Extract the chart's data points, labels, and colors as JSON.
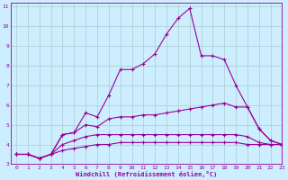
{
  "xlabel": "Windchill (Refroidissement éolien,°C)",
  "background_color": "#cceeff",
  "line_color": "#990099",
  "grid_color": "#aacccc",
  "xlim": [
    -0.5,
    23
  ],
  "ylim": [
    3,
    11.2
  ],
  "xticks": [
    0,
    1,
    2,
    3,
    4,
    5,
    6,
    7,
    8,
    9,
    10,
    11,
    12,
    13,
    14,
    15,
    16,
    17,
    18,
    19,
    20,
    21,
    22,
    23
  ],
  "yticks": [
    3,
    4,
    5,
    6,
    7,
    8,
    9,
    10,
    11
  ],
  "line1_x": [
    0,
    1,
    2,
    3,
    4,
    5,
    6,
    7,
    8,
    9,
    10,
    11,
    12,
    13,
    14,
    15,
    16,
    17,
    18,
    19,
    20,
    21,
    22,
    23
  ],
  "line1_y": [
    3.5,
    3.5,
    3.3,
    3.5,
    4.5,
    4.6,
    5.6,
    5.4,
    6.5,
    7.8,
    7.8,
    8.1,
    8.6,
    9.6,
    10.4,
    10.9,
    8.5,
    8.5,
    8.3,
    7.0,
    5.9,
    4.8,
    4.2,
    4.0
  ],
  "line2_x": [
    0,
    1,
    2,
    3,
    4,
    5,
    6,
    7,
    8,
    9,
    10,
    11,
    12,
    13,
    14,
    15,
    16,
    17,
    18,
    19,
    20,
    21,
    22,
    23
  ],
  "line2_y": [
    3.5,
    3.5,
    3.3,
    3.5,
    4.5,
    4.6,
    5.0,
    4.9,
    5.3,
    5.4,
    5.4,
    5.5,
    5.5,
    5.6,
    5.7,
    5.8,
    5.9,
    6.0,
    6.1,
    5.9,
    5.9,
    4.8,
    4.2,
    4.0
  ],
  "line3_x": [
    0,
    1,
    2,
    3,
    4,
    5,
    6,
    7,
    8,
    9,
    10,
    11,
    12,
    13,
    14,
    15,
    16,
    17,
    18,
    19,
    20,
    21,
    22,
    23
  ],
  "line3_y": [
    3.5,
    3.5,
    3.3,
    3.5,
    4.0,
    4.2,
    4.4,
    4.5,
    4.5,
    4.5,
    4.5,
    4.5,
    4.5,
    4.5,
    4.5,
    4.5,
    4.5,
    4.5,
    4.5,
    4.5,
    4.4,
    4.1,
    4.0,
    4.0
  ],
  "line4_x": [
    0,
    1,
    2,
    3,
    4,
    5,
    6,
    7,
    8,
    9,
    10,
    11,
    12,
    13,
    14,
    15,
    16,
    17,
    18,
    19,
    20,
    21,
    22,
    23
  ],
  "line4_y": [
    3.5,
    3.5,
    3.3,
    3.5,
    3.7,
    3.8,
    3.9,
    4.0,
    4.0,
    4.1,
    4.1,
    4.1,
    4.1,
    4.1,
    4.1,
    4.1,
    4.1,
    4.1,
    4.1,
    4.1,
    4.0,
    4.0,
    4.0,
    4.0
  ]
}
